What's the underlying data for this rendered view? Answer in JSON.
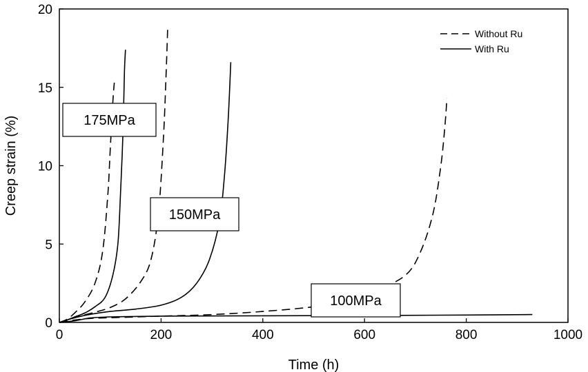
{
  "chart_data": {
    "type": "line",
    "title": "",
    "xlabel": "Time (h)",
    "ylabel": "Creep strain (%)",
    "xlim": [
      0,
      1000
    ],
    "ylim": [
      0,
      20
    ],
    "xticks": [
      0,
      200,
      400,
      600,
      800,
      1000
    ],
    "yticks": [
      0,
      5,
      10,
      15,
      20
    ],
    "grid": false,
    "legend_position": "top-right",
    "legend": [
      {
        "label": "Without Ru",
        "style": "dashed"
      },
      {
        "label": "With Ru",
        "style": "solid"
      }
    ],
    "annotations": [
      {
        "text": "175MPa"
      },
      {
        "text": "150MPa"
      },
      {
        "text": "100MPa"
      }
    ],
    "series": [
      {
        "group": "Without Ru",
        "stress": "175MPa",
        "style": "dashed",
        "points": [
          [
            0,
            0
          ],
          [
            15,
            0.2
          ],
          [
            30,
            0.6
          ],
          [
            50,
            1.3
          ],
          [
            70,
            2.5
          ],
          [
            85,
            4.5
          ],
          [
            95,
            8
          ],
          [
            100,
            11
          ],
          [
            105,
            14
          ],
          [
            108,
            15.3
          ]
        ]
      },
      {
        "group": "With Ru",
        "stress": "175MPa",
        "style": "solid",
        "points": [
          [
            0,
            0
          ],
          [
            15,
            0.15
          ],
          [
            30,
            0.35
          ],
          [
            50,
            0.6
          ],
          [
            70,
            1.0
          ],
          [
            90,
            1.6
          ],
          [
            105,
            3
          ],
          [
            115,
            5
          ],
          [
            120,
            8
          ],
          [
            125,
            12
          ],
          [
            128,
            16
          ],
          [
            130,
            17.4
          ]
        ]
      },
      {
        "group": "Without Ru",
        "stress": "150MPa",
        "style": "dashed",
        "points": [
          [
            0,
            0
          ],
          [
            20,
            0.2
          ],
          [
            40,
            0.4
          ],
          [
            70,
            0.65
          ],
          [
            100,
            0.95
          ],
          [
            130,
            1.5
          ],
          [
            160,
            2.6
          ],
          [
            180,
            4
          ],
          [
            195,
            7
          ],
          [
            205,
            12
          ],
          [
            210,
            16
          ],
          [
            213,
            18.8
          ]
        ]
      },
      {
        "group": "With Ru",
        "stress": "150MPa",
        "style": "solid",
        "points": [
          [
            0,
            0
          ],
          [
            20,
            0.2
          ],
          [
            50,
            0.45
          ],
          [
            100,
            0.7
          ],
          [
            150,
            0.85
          ],
          [
            200,
            1.1
          ],
          [
            240,
            1.6
          ],
          [
            270,
            2.5
          ],
          [
            295,
            4
          ],
          [
            315,
            6.5
          ],
          [
            325,
            9.5
          ],
          [
            332,
            13
          ],
          [
            337,
            16.6
          ]
        ]
      },
      {
        "group": "Without Ru",
        "stress": "100MPa",
        "style": "dashed",
        "points": [
          [
            0,
            0
          ],
          [
            30,
            0.15
          ],
          [
            60,
            0.25
          ],
          [
            100,
            0.3
          ],
          [
            200,
            0.4
          ],
          [
            300,
            0.5
          ],
          [
            400,
            0.7
          ],
          [
            500,
            1.0
          ],
          [
            560,
            1.4
          ],
          [
            620,
            2.0
          ],
          [
            680,
            3.0
          ],
          [
            710,
            4.5
          ],
          [
            735,
            7
          ],
          [
            750,
            10
          ],
          [
            758,
            12.5
          ],
          [
            762,
            14.3
          ]
        ]
      },
      {
        "group": "With Ru",
        "stress": "100MPa",
        "style": "solid",
        "points": [
          [
            0,
            0
          ],
          [
            30,
            0.1
          ],
          [
            60,
            0.28
          ],
          [
            100,
            0.35
          ],
          [
            200,
            0.4
          ],
          [
            400,
            0.42
          ],
          [
            600,
            0.44
          ],
          [
            800,
            0.47
          ],
          [
            930,
            0.5
          ]
        ]
      }
    ]
  }
}
